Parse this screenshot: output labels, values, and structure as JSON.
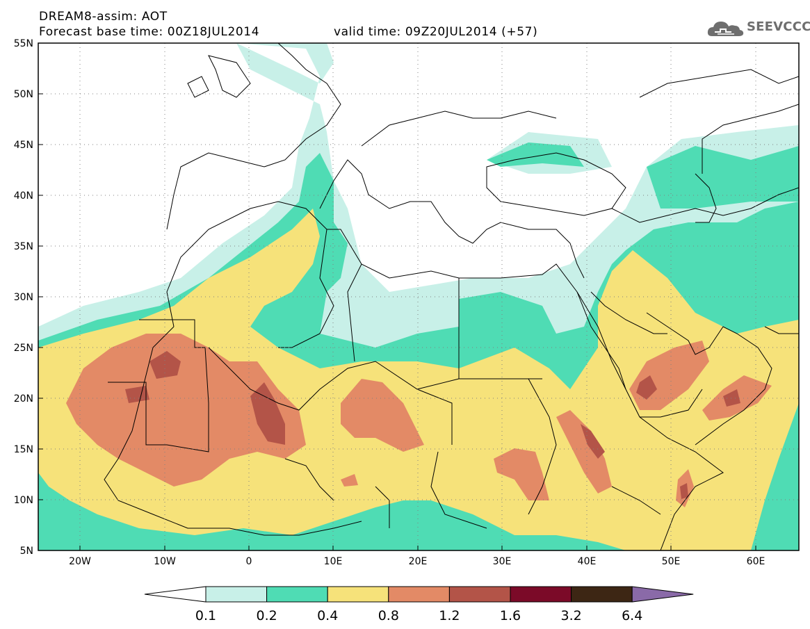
{
  "header": {
    "title": "DREAM8-assim: AOT",
    "base_time": "Forecast base time: 00Z18JUL2014",
    "valid_time": "valid time: 09Z20JUL2014 (+57)"
  },
  "logo": {
    "text": "SEEVCCC",
    "icon": "cloud-icon"
  },
  "map": {
    "lat_labels": [
      "55N",
      "50N",
      "45N",
      "40N",
      "35N",
      "30N",
      "25N",
      "20N",
      "15N",
      "10N",
      "5N"
    ],
    "lon_labels": [
      "20W",
      "10W",
      "0",
      "10E",
      "20E",
      "30E",
      "40E",
      "50E",
      "60E"
    ],
    "extent": {
      "lon": [
        -25,
        65
      ],
      "lat": [
        5,
        55
      ]
    }
  },
  "colorbar": {
    "levels": [
      "0.1",
      "0.2",
      "0.4",
      "0.8",
      "1.2",
      "1.6",
      "3.2",
      "6.4"
    ],
    "colors": [
      "#ffffff",
      "#c8f0e8",
      "#4fdcb4",
      "#f6e27a",
      "#e38a66",
      "#b35448",
      "#7b0a28",
      "#3d2614",
      "#8a6aa8"
    ]
  }
}
